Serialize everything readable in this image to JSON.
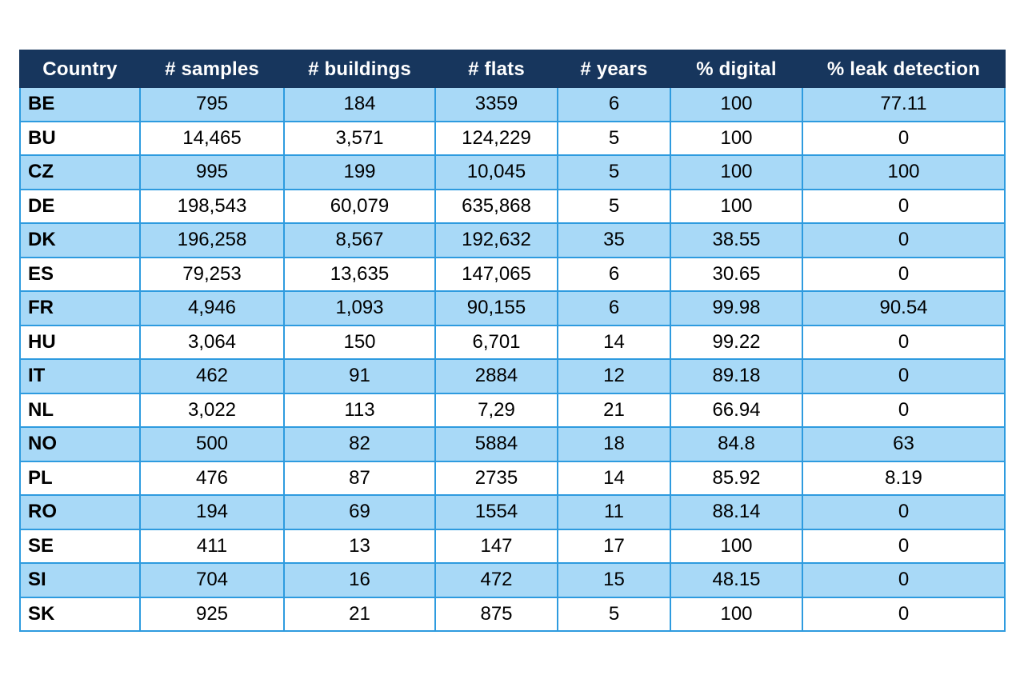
{
  "colors": {
    "header_bg": "#17365D",
    "header_text": "#FFFFFF",
    "row_alt_blue": "#A8D9F7",
    "row_white": "#FFFFFF",
    "cell_border": "#2E9BDF",
    "body_text": "#000000"
  },
  "table": {
    "columns": [
      {
        "key": "country",
        "label": "Country"
      },
      {
        "key": "samples",
        "label": "# samples"
      },
      {
        "key": "buildings",
        "label": "# buildings"
      },
      {
        "key": "flats",
        "label": "# flats"
      },
      {
        "key": "years",
        "label": "# years"
      },
      {
        "key": "digital",
        "label": "% digital"
      },
      {
        "key": "leak",
        "label": "% leak detection"
      }
    ],
    "rows": [
      [
        "BE",
        "795",
        "184",
        "3359",
        "6",
        "100",
        "77.11"
      ],
      [
        "BU",
        "14,465",
        "3,571",
        "124,229",
        "5",
        "100",
        "0"
      ],
      [
        "CZ",
        "995",
        "199",
        "10,045",
        "5",
        "100",
        "100"
      ],
      [
        "DE",
        "198,543",
        "60,079",
        "635,868",
        "5",
        "100",
        "0"
      ],
      [
        "DK",
        "196,258",
        "8,567",
        "192,632",
        "35",
        "38.55",
        "0"
      ],
      [
        "ES",
        "79,253",
        "13,635",
        "147,065",
        "6",
        "30.65",
        "0"
      ],
      [
        "FR",
        "4,946",
        "1,093",
        "90,155",
        "6",
        "99.98",
        "90.54"
      ],
      [
        "HU",
        "3,064",
        "150",
        "6,701",
        "14",
        "99.22",
        "0"
      ],
      [
        "IT",
        "462",
        "91",
        "2884",
        "12",
        "89.18",
        "0"
      ],
      [
        "NL",
        "3,022",
        "113",
        "7,29",
        "21",
        "66.94",
        "0"
      ],
      [
        "NO",
        "500",
        "82",
        "5884",
        "18",
        "84.8",
        "63"
      ],
      [
        "PL",
        "476",
        "87",
        "2735",
        "14",
        "85.92",
        "8.19"
      ],
      [
        "RO",
        "194",
        "69",
        "1554",
        "11",
        "88.14",
        "0"
      ],
      [
        "SE",
        "411",
        "13",
        "147",
        "17",
        "100",
        "0"
      ],
      [
        "SI",
        "704",
        "16",
        "472",
        "15",
        "48.15",
        "0"
      ],
      [
        "SK",
        "925",
        "21",
        "875",
        "5",
        "100",
        "0"
      ]
    ]
  }
}
